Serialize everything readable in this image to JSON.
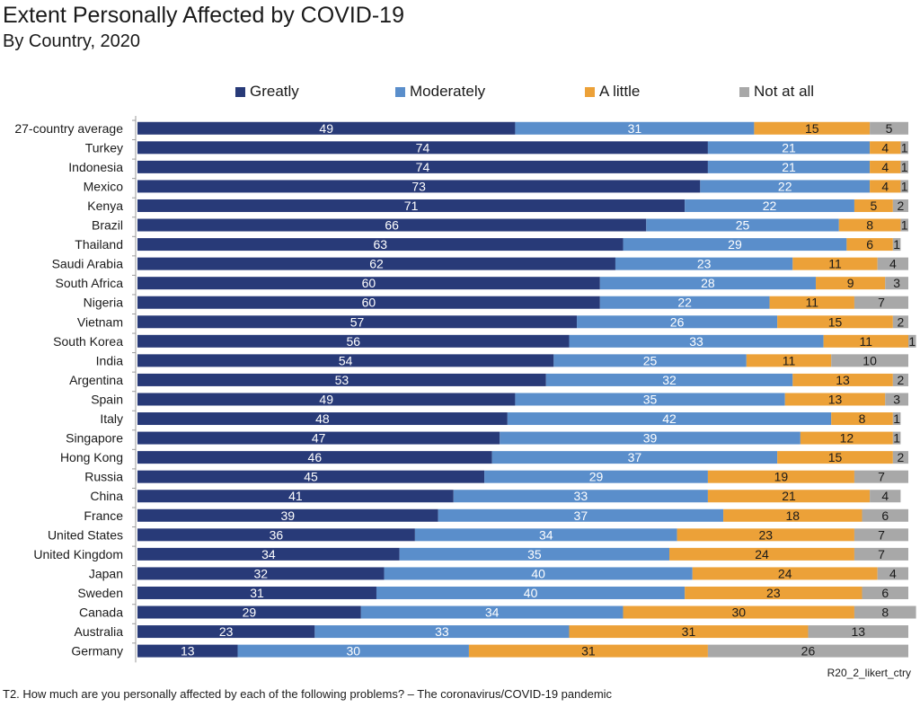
{
  "title": "Extent Personally Affected by COVID-19",
  "subtitle": "By Country, 2020",
  "source_code": "R20_2_likert_ctry",
  "footnote": "T2. How much are you personally affected by each of the following problems? – The coronavirus/COVID-19 pandemic",
  "chart_data": {
    "type": "bar",
    "orientation": "horizontal",
    "stacked": true,
    "title": "Extent Personally Affected by COVID-19",
    "subtitle": "By Country, 2020",
    "xlim": [
      0,
      100
    ],
    "legend_position": "top",
    "categories": [
      "27-country average",
      "Turkey",
      "Indonesia",
      "Mexico",
      "Kenya",
      "Brazil",
      "Thailand",
      "Saudi Arabia",
      "South Africa",
      "Nigeria",
      "Vietnam",
      "South Korea",
      "India",
      "Argentina",
      "Spain",
      "Italy",
      "Singapore",
      "Hong Kong",
      "Russia",
      "China",
      "France",
      "United States",
      "United Kingdom",
      "Japan",
      "Sweden",
      "Canada",
      "Australia",
      "Germany"
    ],
    "series": [
      {
        "name": "Greatly",
        "color": "#283a78",
        "values": [
          49,
          74,
          74,
          73,
          71,
          66,
          63,
          62,
          60,
          60,
          57,
          56,
          54,
          53,
          49,
          48,
          47,
          46,
          45,
          41,
          39,
          36,
          34,
          32,
          31,
          29,
          23,
          13
        ]
      },
      {
        "name": "Moderately",
        "color": "#5a8ecb",
        "values": [
          31,
          21,
          21,
          22,
          22,
          25,
          29,
          23,
          28,
          22,
          26,
          33,
          25,
          32,
          35,
          42,
          39,
          37,
          29,
          33,
          37,
          34,
          35,
          40,
          40,
          34,
          33,
          30
        ]
      },
      {
        "name": "A little",
        "color": "#eca138",
        "values": [
          15,
          4,
          4,
          4,
          5,
          8,
          6,
          11,
          9,
          11,
          15,
          11,
          11,
          13,
          13,
          8,
          12,
          15,
          19,
          21,
          18,
          23,
          24,
          24,
          23,
          30,
          31,
          31
        ]
      },
      {
        "name": "Not at all",
        "color": "#a8a8a8",
        "values": [
          5,
          1,
          1,
          1,
          2,
          1,
          1,
          4,
          3,
          7,
          2,
          1,
          10,
          2,
          3,
          1,
          1,
          2,
          7,
          4,
          6,
          7,
          7,
          4,
          6,
          8,
          13,
          26
        ]
      }
    ]
  }
}
